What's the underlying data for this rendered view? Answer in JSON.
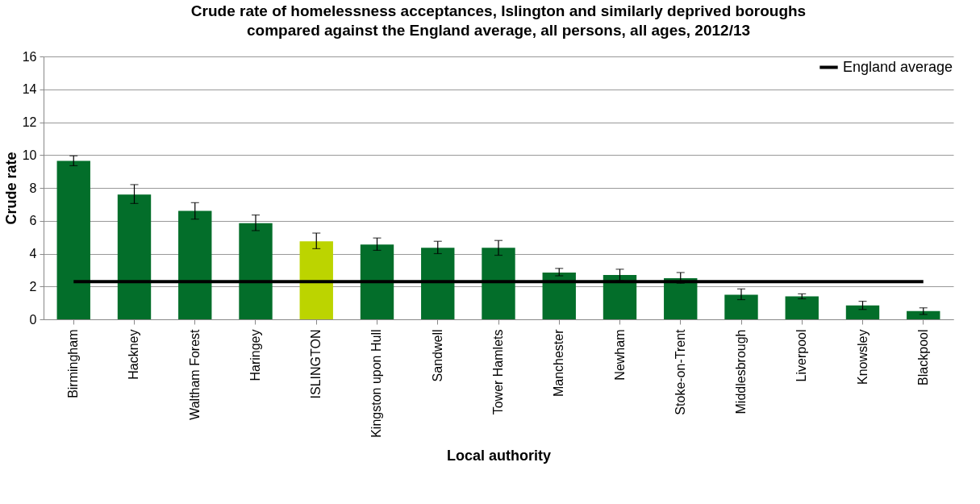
{
  "chart_data": {
    "type": "bar",
    "title": "Crude rate of homelessness acceptances, Islington and similarly deprived boroughs\ncompared against the England average, all persons, all ages, 2012/13",
    "xlabel": "Local authority",
    "ylabel": "Crude rate",
    "categories": [
      "Birmingham",
      "Hackney",
      "Waltham Forest",
      "Haringey",
      "ISLINGTON",
      "Kingston upon Hull",
      "Sandwell",
      "Tower Hamlets",
      "Manchester",
      "Newham",
      "Stoke-on-Trent",
      "Middlesbrough",
      "Liverpool",
      "Knowsley",
      "Blackpool"
    ],
    "series": [
      {
        "colors": [
          "#036e2a",
          "#036e2a",
          "#036e2a",
          "#036e2a",
          "#bcd400",
          "#036e2a",
          "#036e2a",
          "#036e2a",
          "#036e2a",
          "#036e2a",
          "#036e2a",
          "#036e2a",
          "#036e2a",
          "#036e2a",
          "#036e2a"
        ],
        "values": [
          9.65,
          7.6,
          6.6,
          5.85,
          4.75,
          4.55,
          4.35,
          4.35,
          2.85,
          2.7,
          2.5,
          1.5,
          1.4,
          0.85,
          0.5
        ],
        "errors": [
          [
            9.35,
            9.95
          ],
          [
            7.05,
            8.2
          ],
          [
            6.1,
            7.1
          ],
          [
            5.4,
            6.35
          ],
          [
            4.3,
            5.25
          ],
          [
            4.2,
            4.95
          ],
          [
            4.0,
            4.75
          ],
          [
            3.9,
            4.8
          ],
          [
            2.65,
            3.1
          ],
          [
            2.35,
            3.05
          ],
          [
            2.2,
            2.85
          ],
          [
            1.2,
            1.85
          ],
          [
            1.25,
            1.55
          ],
          [
            0.6,
            1.1
          ],
          [
            0.3,
            0.7
          ]
        ]
      },
      {
        "name": "England average",
        "type": "line",
        "color": "#000000",
        "values": [
          2.3,
          2.3,
          2.3,
          2.3,
          2.3,
          2.3,
          2.3,
          2.3,
          2.3,
          2.3,
          2.3,
          2.3,
          2.3,
          2.3,
          2.3
        ]
      }
    ],
    "ylim": [
      0,
      16
    ],
    "yticks": [
      0,
      2,
      4,
      6,
      8,
      10,
      12,
      14,
      16
    ],
    "grid": "y",
    "legend": "top right"
  }
}
